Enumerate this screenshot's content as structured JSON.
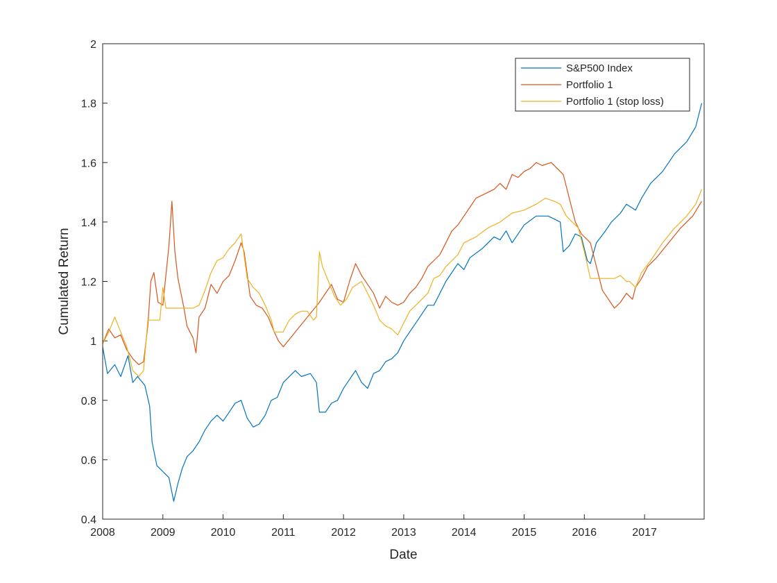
{
  "chart_data": {
    "type": "line",
    "title": "",
    "xlabel": "Date",
    "ylabel": "Cumulated Return",
    "xlim": [
      2008.0,
      2017.99
    ],
    "ylim": [
      0.4,
      2.0
    ],
    "xticks": [
      "2008",
      "2009",
      "2010",
      "2011",
      "2012",
      "2013",
      "2014",
      "2015",
      "2016",
      "2017"
    ],
    "yticks": [
      "0.4",
      "0.6",
      "0.8",
      "1",
      "1.2",
      "1.4",
      "1.6",
      "1.8",
      "2"
    ],
    "grid": false,
    "legend_position": "top-right",
    "series": [
      {
        "name": "S&P500 Index",
        "color": "#0072BD",
        "x": [
          2008.0,
          2008.08,
          2008.2,
          2008.3,
          2008.42,
          2008.5,
          2008.58,
          2008.7,
          2008.78,
          2008.82,
          2008.9,
          2009.0,
          2009.1,
          2009.18,
          2009.25,
          2009.32,
          2009.4,
          2009.5,
          2009.6,
          2009.7,
          2009.8,
          2009.9,
          2010.0,
          2010.1,
          2010.2,
          2010.3,
          2010.4,
          2010.5,
          2010.6,
          2010.7,
          2010.8,
          2010.9,
          2011.0,
          2011.2,
          2011.3,
          2011.45,
          2011.55,
          2011.6,
          2011.7,
          2011.8,
          2011.9,
          2012.0,
          2012.2,
          2012.3,
          2012.4,
          2012.5,
          2012.6,
          2012.7,
          2012.8,
          2012.9,
          2013.0,
          2013.2,
          2013.4,
          2013.5,
          2013.7,
          2013.9,
          2014.0,
          2014.1,
          2014.3,
          2014.5,
          2014.6,
          2014.7,
          2014.8,
          2015.0,
          2015.2,
          2015.4,
          2015.5,
          2015.6,
          2015.65,
          2015.75,
          2015.85,
          2015.95,
          2016.05,
          2016.1,
          2016.2,
          2016.35,
          2016.45,
          2016.6,
          2016.7,
          2016.85,
          2016.95,
          2017.1,
          2017.3,
          2017.5,
          2017.7,
          2017.85,
          2017.95
        ],
        "values": [
          0.98,
          0.89,
          0.92,
          0.88,
          0.95,
          0.86,
          0.88,
          0.85,
          0.78,
          0.66,
          0.58,
          0.56,
          0.54,
          0.46,
          0.52,
          0.57,
          0.61,
          0.63,
          0.66,
          0.7,
          0.73,
          0.75,
          0.73,
          0.76,
          0.79,
          0.8,
          0.74,
          0.71,
          0.72,
          0.75,
          0.8,
          0.81,
          0.86,
          0.9,
          0.88,
          0.89,
          0.86,
          0.76,
          0.76,
          0.79,
          0.8,
          0.84,
          0.9,
          0.86,
          0.84,
          0.89,
          0.9,
          0.93,
          0.94,
          0.96,
          1.0,
          1.06,
          1.12,
          1.12,
          1.2,
          1.26,
          1.24,
          1.28,
          1.31,
          1.35,
          1.34,
          1.37,
          1.33,
          1.39,
          1.42,
          1.42,
          1.41,
          1.4,
          1.3,
          1.32,
          1.36,
          1.35,
          1.27,
          1.26,
          1.33,
          1.37,
          1.4,
          1.43,
          1.46,
          1.44,
          1.48,
          1.53,
          1.57,
          1.63,
          1.67,
          1.72,
          1.8
        ]
      },
      {
        "name": "Portfolio 1",
        "color": "#D95319",
        "x": [
          2008.0,
          2008.1,
          2008.2,
          2008.3,
          2008.4,
          2008.5,
          2008.6,
          2008.68,
          2008.75,
          2008.8,
          2008.85,
          2008.92,
          2009.0,
          2009.05,
          2009.1,
          2009.15,
          2009.2,
          2009.25,
          2009.35,
          2009.4,
          2009.5,
          2009.55,
          2009.6,
          2009.7,
          2009.8,
          2009.9,
          2010.0,
          2010.1,
          2010.2,
          2010.3,
          2010.35,
          2010.45,
          2010.55,
          2010.65,
          2010.75,
          2010.85,
          2010.92,
          2011.0,
          2011.2,
          2011.4,
          2011.6,
          2011.8,
          2011.9,
          2012.0,
          2012.1,
          2012.2,
          2012.3,
          2012.4,
          2012.5,
          2012.6,
          2012.7,
          2012.8,
          2012.9,
          2013.0,
          2013.1,
          2013.2,
          2013.3,
          2013.4,
          2013.5,
          2013.6,
          2013.7,
          2013.8,
          2013.9,
          2014.0,
          2014.1,
          2014.2,
          2014.3,
          2014.5,
          2014.6,
          2014.7,
          2014.8,
          2014.9,
          2015.0,
          2015.1,
          2015.2,
          2015.3,
          2015.45,
          2015.55,
          2015.65,
          2015.75,
          2015.85,
          2015.95,
          2016.1,
          2016.2,
          2016.3,
          2016.4,
          2016.5,
          2016.6,
          2016.7,
          2016.8,
          2016.85,
          2016.95,
          2017.05,
          2017.2,
          2017.4,
          2017.6,
          2017.8,
          2017.95
        ],
        "values": [
          0.99,
          1.04,
          1.01,
          1.02,
          0.97,
          0.94,
          0.92,
          0.93,
          1.05,
          1.2,
          1.23,
          1.13,
          1.12,
          1.22,
          1.32,
          1.47,
          1.3,
          1.21,
          1.11,
          1.05,
          1.01,
          0.96,
          1.08,
          1.11,
          1.19,
          1.16,
          1.2,
          1.22,
          1.27,
          1.33,
          1.3,
          1.15,
          1.12,
          1.11,
          1.08,
          1.03,
          1.0,
          0.98,
          1.03,
          1.08,
          1.13,
          1.19,
          1.14,
          1.13,
          1.2,
          1.26,
          1.22,
          1.19,
          1.16,
          1.11,
          1.15,
          1.13,
          1.12,
          1.13,
          1.16,
          1.18,
          1.21,
          1.25,
          1.27,
          1.29,
          1.33,
          1.37,
          1.39,
          1.42,
          1.45,
          1.48,
          1.49,
          1.51,
          1.53,
          1.51,
          1.56,
          1.55,
          1.57,
          1.58,
          1.6,
          1.59,
          1.6,
          1.58,
          1.56,
          1.48,
          1.4,
          1.36,
          1.33,
          1.25,
          1.17,
          1.14,
          1.11,
          1.13,
          1.16,
          1.14,
          1.18,
          1.21,
          1.25,
          1.28,
          1.33,
          1.38,
          1.42,
          1.47
        ]
      },
      {
        "name": "Portfolio 1 (stop loss)",
        "color": "#EDB120",
        "x": [
          2008.0,
          2008.1,
          2008.2,
          2008.3,
          2008.4,
          2008.5,
          2008.6,
          2008.68,
          2008.75,
          2008.8,
          2008.85,
          2008.9,
          2008.95,
          2009.0,
          2009.05,
          2009.08,
          2009.15,
          2009.22,
          2009.3,
          2009.4,
          2009.5,
          2009.6,
          2009.7,
          2009.8,
          2009.9,
          2010.0,
          2010.1,
          2010.2,
          2010.3,
          2010.4,
          2010.5,
          2010.6,
          2010.7,
          2010.8,
          2010.85,
          2011.0,
          2011.02,
          2011.1,
          2011.2,
          2011.3,
          2011.4,
          2011.5,
          2011.55,
          2011.6,
          2011.65,
          2011.75,
          2011.85,
          2011.95,
          2012.05,
          2012.15,
          2012.3,
          2012.4,
          2012.5,
          2012.6,
          2012.7,
          2012.8,
          2012.9,
          2013.0,
          2013.1,
          2013.2,
          2013.3,
          2013.4,
          2013.5,
          2013.6,
          2013.7,
          2013.8,
          2013.9,
          2014.0,
          2014.2,
          2014.4,
          2014.6,
          2014.8,
          2015.0,
          2015.2,
          2015.35,
          2015.5,
          2015.6,
          2015.7,
          2015.8,
          2015.9,
          2016.0,
          2016.1,
          2016.3,
          2016.5,
          2016.6,
          2016.7,
          2016.75,
          2016.85,
          2016.95,
          2017.1,
          2017.3,
          2017.5,
          2017.7,
          2017.85,
          2017.95
        ],
        "values": [
          0.99,
          1.03,
          1.08,
          1.03,
          0.98,
          0.9,
          0.88,
          0.9,
          1.07,
          1.07,
          1.07,
          1.07,
          1.07,
          1.18,
          1.11,
          1.11,
          1.11,
          1.11,
          1.11,
          1.11,
          1.11,
          1.12,
          1.17,
          1.23,
          1.27,
          1.28,
          1.31,
          1.33,
          1.36,
          1.21,
          1.18,
          1.16,
          1.12,
          1.07,
          1.03,
          1.03,
          1.04,
          1.07,
          1.09,
          1.1,
          1.1,
          1.07,
          1.08,
          1.3,
          1.25,
          1.2,
          1.15,
          1.12,
          1.14,
          1.18,
          1.2,
          1.16,
          1.12,
          1.07,
          1.05,
          1.04,
          1.02,
          1.06,
          1.1,
          1.12,
          1.14,
          1.16,
          1.21,
          1.22,
          1.25,
          1.27,
          1.29,
          1.33,
          1.35,
          1.38,
          1.4,
          1.43,
          1.44,
          1.46,
          1.48,
          1.47,
          1.46,
          1.42,
          1.4,
          1.38,
          1.3,
          1.21,
          1.21,
          1.21,
          1.22,
          1.2,
          1.2,
          1.18,
          1.23,
          1.27,
          1.33,
          1.38,
          1.42,
          1.46,
          1.51
        ]
      }
    ]
  }
}
